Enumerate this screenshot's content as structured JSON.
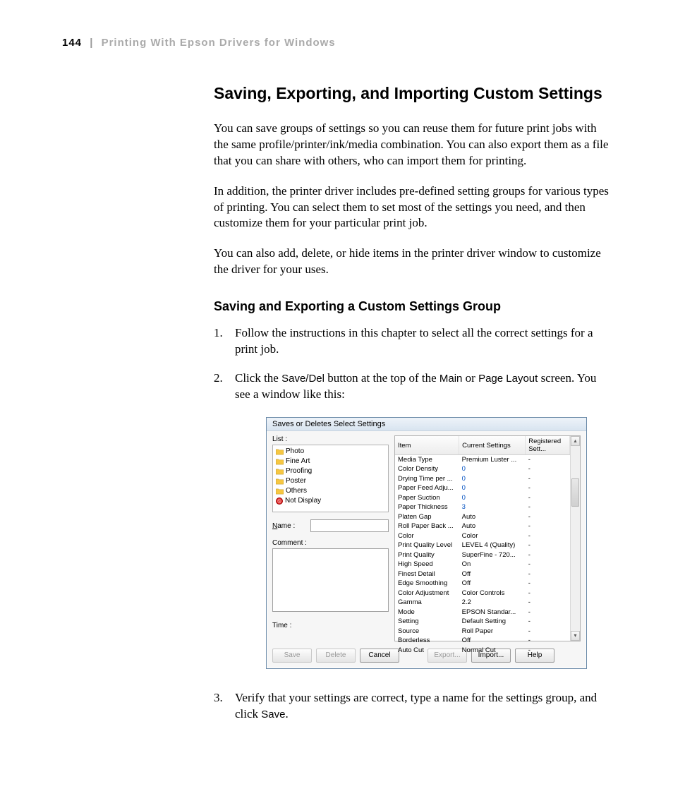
{
  "header": {
    "page_number": "144",
    "separator": "|",
    "chapter_title": "Printing With Epson Drivers for Windows"
  },
  "h1": "Saving, Exporting, and Importing Custom Settings",
  "para1": "You can save groups of settings so you can reuse them for future print jobs with the same profile/printer/ink/media combination. You can also export them as a file that you can share with others, who can import them for printing.",
  "para2": "In addition, the printer driver includes pre-defined setting groups for various types of printing. You can select them to set most of the settings you need, and then customize them for your particular print job.",
  "para3": "You can also add, delete, or hide items in the printer driver window to customize the driver for your uses.",
  "h2": "Saving and Exporting a Custom Settings Group",
  "step1": "Follow the instructions in this chapter to select all the correct settings for a print job.",
  "step2_a": "Click the ",
  "step2_b": "Save/Del",
  "step2_c": " button at the top of the ",
  "step2_d": "Main",
  "step2_e": " or ",
  "step2_f": "Page Layout",
  "step2_g": " screen. You see a window like this:",
  "step3_a": "Verify that your settings are correct, type a name for the settings group, and click ",
  "step3_b": "Save",
  "step3_c": ".",
  "dialog": {
    "title": "Saves or Deletes Select Settings",
    "list_label": "List :",
    "list_items": [
      "Photo",
      "Fine Art",
      "Proofing",
      "Poster",
      "Others",
      "Not Display"
    ],
    "name_label": "Name :",
    "comment_label": "Comment :",
    "time_label": "Time :",
    "columns": [
      "Item",
      "Current Settings",
      "Registered Sett..."
    ],
    "rows": [
      [
        "Media Type",
        "Premium Luster ...",
        "-"
      ],
      [
        "Color Density",
        "0",
        "-"
      ],
      [
        "Drying Time per ...",
        "0",
        "-"
      ],
      [
        "Paper Feed Adju...",
        "0",
        "-"
      ],
      [
        "Paper Suction",
        "0",
        "-"
      ],
      [
        "Paper Thickness",
        "3",
        "-"
      ],
      [
        "Platen Gap",
        "Auto",
        "-"
      ],
      [
        "Roll Paper Back ...",
        "Auto",
        "-"
      ],
      [
        "Color",
        "Color",
        "-"
      ],
      [
        "Print Quality Level",
        "LEVEL 4 (Quality)",
        "-"
      ],
      [
        "Print Quality",
        "SuperFine - 720...",
        "-"
      ],
      [
        "High Speed",
        "On",
        "-"
      ],
      [
        "Finest Detail",
        "Off",
        "-"
      ],
      [
        "Edge Smoothing",
        "Off",
        "-"
      ],
      [
        "Color Adjustment",
        "Color Controls",
        "-"
      ],
      [
        "Gamma",
        "2.2",
        "-"
      ],
      [
        "Mode",
        "EPSON Standar...",
        "-"
      ],
      [
        "Setting",
        "Default Setting",
        "-"
      ],
      [
        "Source",
        "Roll Paper",
        "-"
      ],
      [
        "Borderless",
        "Off",
        "-"
      ],
      [
        "Auto Cut",
        "Normal Cut",
        "-"
      ]
    ],
    "blue_value_rows": [
      1,
      2,
      3,
      4,
      5
    ],
    "buttons": {
      "save": "Save",
      "delete": "Delete",
      "cancel": "Cancel",
      "export": "Export...",
      "import": "Import...",
      "help": "Help"
    }
  }
}
